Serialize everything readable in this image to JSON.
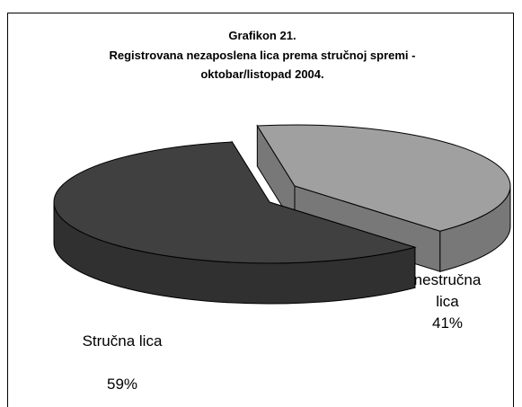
{
  "chart_data": {
    "type": "pie",
    "title": "Grafikon 21.",
    "subtitle": [
      "Registrovana nezaposlena lica prema stručnoj spremi  -",
      "oktobar/listopad 2004."
    ],
    "categories": [
      "Stručna lica",
      "nestručna lica"
    ],
    "values": [
      59,
      41
    ],
    "value_labels": [
      "59%",
      "41%"
    ],
    "colors": [
      "#404040",
      "#a0a0a0"
    ]
  }
}
